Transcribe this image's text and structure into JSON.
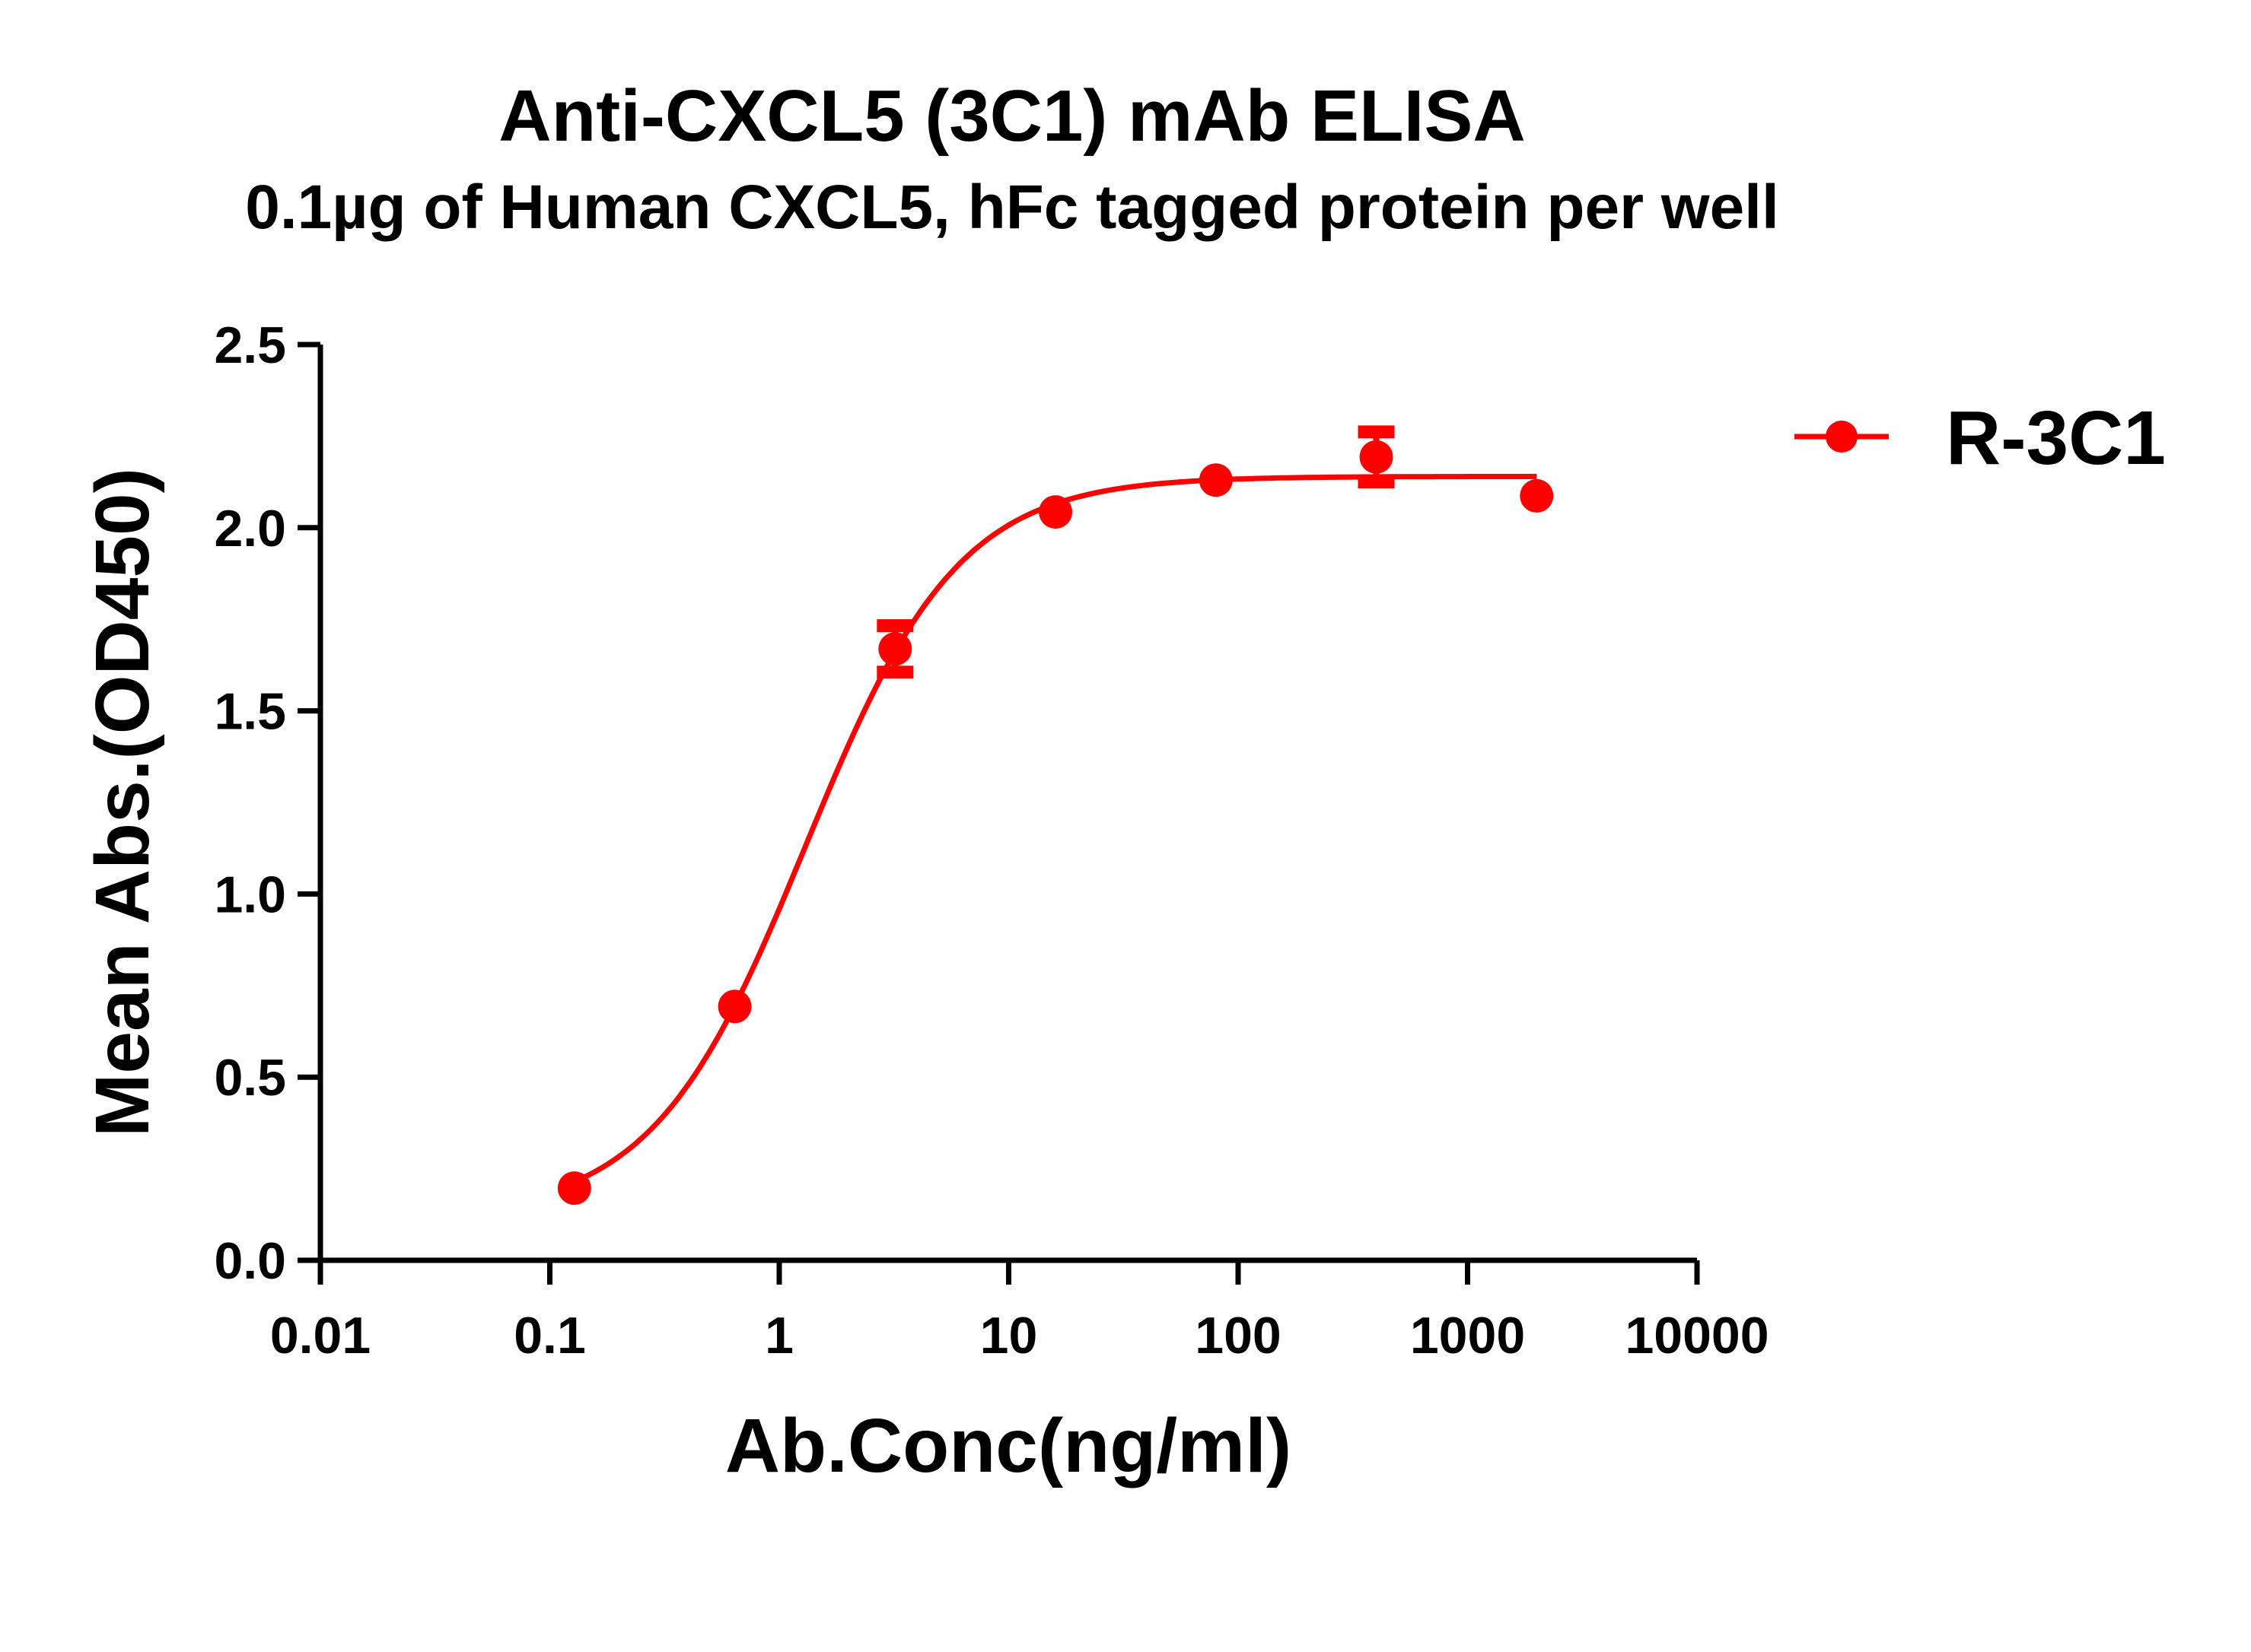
{
  "chart_data": {
    "type": "scatter",
    "title": "Anti-CXCL5 (3C1) mAb ELISA",
    "subtitle": "0.1µg of Human CXCL5, hFc tagged protein per well",
    "xlabel": "Ab.Conc(ng/ml)",
    "ylabel": "Mean Abs.(OD450)",
    "xscale": "log",
    "xlim": [
      0.01,
      10000
    ],
    "ylim": [
      0,
      2.5
    ],
    "xticks": [
      "0.01",
      "0.1",
      "1",
      "10",
      "100",
      "1000",
      "10000"
    ],
    "yticks": [
      "0.0",
      "0.5",
      "1.0",
      "1.5",
      "2.0",
      "2.5"
    ],
    "grid": false,
    "legend_position": "top-right",
    "series": [
      {
        "name": "R-3C1",
        "color": "#ff0000",
        "fit": "sigmoidal curve",
        "x": [
          0.128,
          0.64,
          3.2,
          16,
          80,
          400,
          2000
        ],
        "y": [
          0.197,
          0.693,
          1.669,
          2.043,
          2.13,
          2.193,
          2.087
        ],
        "error": [
          0.01,
          0.01,
          0.08,
          0.01,
          0.01,
          0.085,
          0.01
        ]
      }
    ]
  }
}
